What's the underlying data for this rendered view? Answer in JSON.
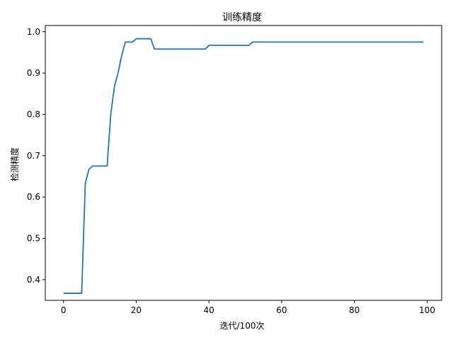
{
  "chart_data": {
    "type": "line",
    "title": "训练精度",
    "xlabel": "迭代/100次",
    "ylabel": "检测精度",
    "xlim": [
      -5,
      104
    ],
    "ylim": [
      0.35,
      1.015
    ],
    "xticks": [
      0,
      20,
      40,
      60,
      80,
      100
    ],
    "yticks": [
      0.4,
      0.5,
      0.6,
      0.7,
      0.8,
      0.9,
      1.0
    ],
    "xtick_labels": [
      "0",
      "20",
      "40",
      "60",
      "80",
      "100"
    ],
    "ytick_labels": [
      "0.4",
      "0.5",
      "0.6",
      "0.7",
      "0.8",
      "0.9",
      "1.0"
    ],
    "grid": false,
    "series": [
      {
        "color": "#1f77b4",
        "x": [
          0,
          1,
          2,
          3,
          4,
          5,
          6,
          7,
          8,
          9,
          10,
          11,
          12,
          13,
          14,
          15,
          16,
          17,
          18,
          19,
          20,
          21,
          22,
          23,
          24,
          25,
          26,
          27,
          28,
          29,
          30,
          31,
          32,
          33,
          34,
          35,
          36,
          37,
          38,
          39,
          40,
          41,
          42,
          43,
          44,
          45,
          46,
          47,
          48,
          49,
          50,
          51,
          52,
          53,
          54,
          55,
          56,
          57,
          58,
          59,
          60,
          61,
          62,
          63,
          64,
          65,
          66,
          67,
          68,
          69,
          70,
          71,
          72,
          73,
          74,
          75,
          76,
          77,
          78,
          79,
          80,
          81,
          82,
          83,
          84,
          85,
          86,
          87,
          88,
          89,
          90,
          91,
          92,
          93,
          94,
          95,
          96,
          97,
          98,
          99
        ],
        "y": [
          0.367,
          0.367,
          0.367,
          0.367,
          0.367,
          0.367,
          0.633,
          0.667,
          0.675,
          0.675,
          0.675,
          0.675,
          0.675,
          0.8,
          0.867,
          0.9,
          0.942,
          0.975,
          0.975,
          0.975,
          0.983,
          0.983,
          0.983,
          0.983,
          0.983,
          0.958,
          0.958,
          0.958,
          0.958,
          0.958,
          0.958,
          0.958,
          0.958,
          0.958,
          0.958,
          0.958,
          0.958,
          0.958,
          0.958,
          0.958,
          0.967,
          0.967,
          0.967,
          0.967,
          0.967,
          0.967,
          0.967,
          0.967,
          0.967,
          0.967,
          0.967,
          0.967,
          0.975,
          0.975,
          0.975,
          0.975,
          0.975,
          0.975,
          0.975,
          0.975,
          0.975,
          0.975,
          0.975,
          0.975,
          0.975,
          0.975,
          0.975,
          0.975,
          0.975,
          0.975,
          0.975,
          0.975,
          0.975,
          0.975,
          0.975,
          0.975,
          0.975,
          0.975,
          0.975,
          0.975,
          0.975,
          0.975,
          0.975,
          0.975,
          0.975,
          0.975,
          0.975,
          0.975,
          0.975,
          0.975,
          0.975,
          0.975,
          0.975,
          0.975,
          0.975,
          0.975,
          0.975,
          0.975,
          0.975,
          0.975
        ]
      }
    ]
  }
}
